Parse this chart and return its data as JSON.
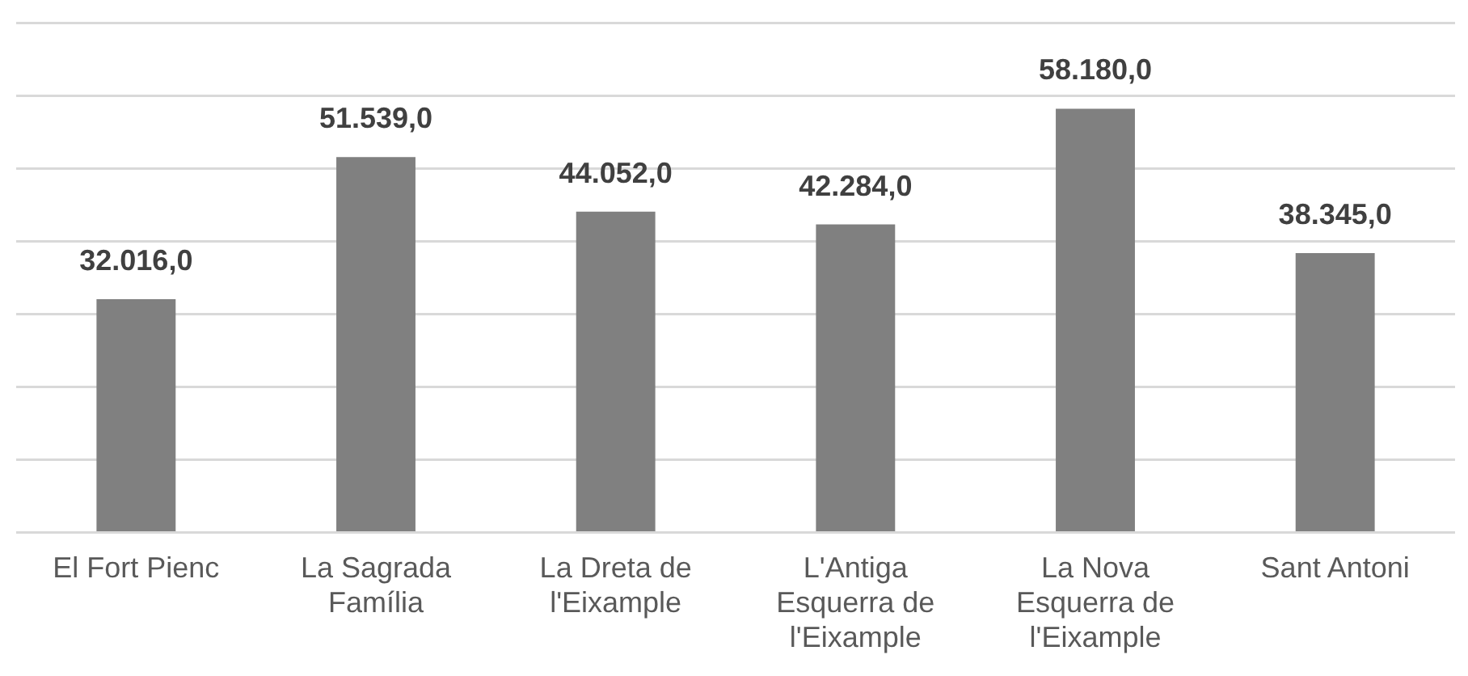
{
  "chart_data": {
    "type": "bar",
    "categories": [
      "El Fort Pienc",
      "La Sagrada Família",
      "La Dreta de l'Eixample",
      "L'Antiga Esquerra de l'Eixample",
      "La Nova Esquerra de l'Eixample",
      "Sant Antoni"
    ],
    "values": [
      32016,
      51539,
      44052,
      42284,
      58180,
      38345
    ],
    "value_labels": [
      "32.016,0",
      "51.539,0",
      "44.052,0",
      "42.284,0",
      "58.180,0",
      "38.345,0"
    ],
    "color": "#808080",
    "ylim": [
      0,
      70000
    ],
    "yticks": [
      {
        "value": 0,
        "label": null
      },
      {
        "value": 10000,
        "label": null
      },
      {
        "value": 20000,
        "label": null
      },
      {
        "value": 30000,
        "label": null
      },
      {
        "value": 40000,
        "label": null
      },
      {
        "value": 50000,
        "label": null
      },
      {
        "value": 60000,
        "label": null
      },
      {
        "value": 70000,
        "label": null
      }
    ],
    "tick_labels": "x",
    "grid": "y",
    "legend": false
  }
}
